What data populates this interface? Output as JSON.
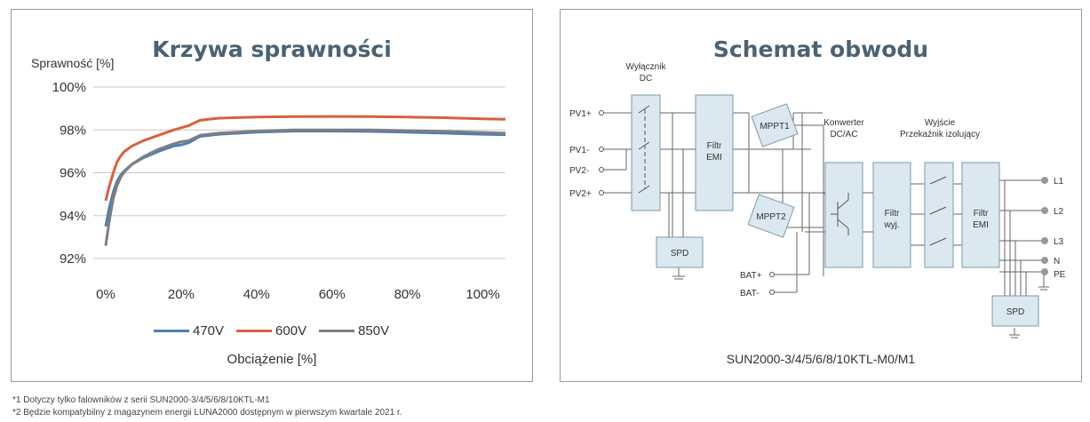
{
  "left": {
    "title": "Krzywa sprawności",
    "ylabel": "Sprawność [%]",
    "xlabel": "Obciążenie [%]"
  },
  "chart_data": {
    "type": "line",
    "title": "Krzywa sprawności",
    "xlabel": "Obciążenie [%]",
    "ylabel": "Sprawność [%]",
    "xlim": [
      0,
      106
    ],
    "ylim": [
      91,
      100
    ],
    "yticks": [
      "100%",
      "98%",
      "96%",
      "94%",
      "92%"
    ],
    "xticks": [
      "0%",
      "20%",
      "40%",
      "60%",
      "80%",
      "100%"
    ],
    "ytick_values": [
      100,
      98,
      96,
      94,
      92
    ],
    "xtick_values": [
      0,
      20,
      40,
      60,
      80,
      100
    ],
    "legend_position": "bottom",
    "series": [
      {
        "name": "470V",
        "color": "#4a7ebb",
        "x": [
          0,
          1,
          2,
          3,
          4,
          5,
          7,
          10,
          14,
          18,
          20,
          22,
          25,
          30,
          40,
          50,
          60,
          70,
          80,
          90,
          100,
          106
        ],
        "y": [
          93.5,
          94.4,
          95.1,
          95.6,
          95.9,
          96.1,
          96.4,
          96.7,
          97.0,
          97.25,
          97.3,
          97.4,
          97.7,
          97.8,
          97.9,
          97.95,
          97.95,
          97.93,
          97.9,
          97.85,
          97.8,
          97.78
        ]
      },
      {
        "name": "600V",
        "color": "#d9603b",
        "x": [
          0,
          1,
          2,
          3,
          4,
          5,
          7,
          10,
          14,
          18,
          20,
          22,
          25,
          30,
          40,
          50,
          60,
          70,
          80,
          90,
          100,
          106
        ],
        "y": [
          94.7,
          95.4,
          96.0,
          96.5,
          96.8,
          97.0,
          97.25,
          97.5,
          97.75,
          98.0,
          98.1,
          98.2,
          98.45,
          98.55,
          98.6,
          98.62,
          98.63,
          98.62,
          98.6,
          98.57,
          98.52,
          98.5
        ]
      },
      {
        "name": "850V",
        "color": "#7f7f7f",
        "x": [
          0,
          1,
          2,
          3,
          4,
          5,
          7,
          10,
          14,
          18,
          20,
          22,
          25,
          30,
          40,
          50,
          60,
          70,
          80,
          90,
          100,
          106
        ],
        "y": [
          92.6,
          93.8,
          94.8,
          95.4,
          95.8,
          96.05,
          96.4,
          96.75,
          97.1,
          97.35,
          97.45,
          97.5,
          97.75,
          97.85,
          97.95,
          98.0,
          98.0,
          98.0,
          97.97,
          97.93,
          97.88,
          97.85
        ]
      }
    ]
  },
  "right": {
    "title": "Schemat obwodu",
    "model": "SUN2000-3/4/5/6/8/10KTL-M0/M1",
    "labels": {
      "dc_switch_1": "Wyłącznik",
      "dc_switch_2": "DC",
      "converter_1": "Konwerter",
      "converter_2": "DC/AC",
      "output_1": "Wyjście",
      "output_2": "Przekaźnik izolujący",
      "pv1p": "PV1+",
      "pv1m": "PV1-",
      "pv2m": "PV2-",
      "pv2p": "PV2+",
      "batp": "BAT+",
      "batm": "BAT-",
      "filter_emi_1": "Filtr",
      "filter_emi_2": "EMI",
      "mppt1": "MPPT1",
      "mppt2": "MPPT2",
      "filter_out_1": "Filtr",
      "filter_out_2": "wyj.",
      "filter_emi2_1": "Filtr",
      "filter_emi2_2": "EMI",
      "spd_left": "SPD",
      "spd_right": "SPD",
      "l1": "L1",
      "l2": "L2",
      "l3": "L3",
      "n": "N",
      "pe": "PE"
    }
  },
  "footnotes": [
    "*1 Dotyczy tylko falowników z serii SUN2000-3/4/5/6/8/10KTL-M1",
    "*2 Będzie kompatybilny z magazynem energii LUNA2000 dostępnym w pierwszym kwartale 2021 r."
  ]
}
